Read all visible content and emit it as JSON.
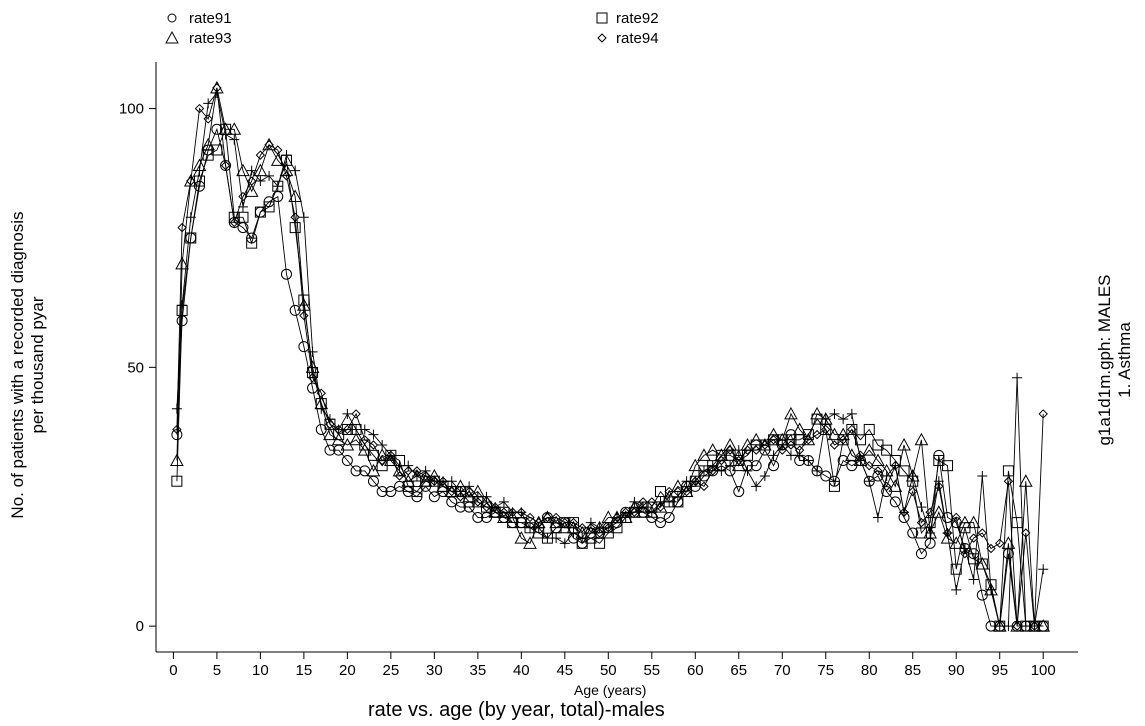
{
  "chart_data": {
    "type": "scatter",
    "title": "rate vs. age (by year, total)-males",
    "xlabel": "Age (years)",
    "ylabel_line1": "No. of patients with a recorded diagnosis",
    "ylabel_line2": "per thousand pyar",
    "right_line1": "g1a1d1m.gph: MALES",
    "right_line2": "1.  Asthma",
    "xlim": [
      -2,
      104
    ],
    "ylim": [
      -5,
      109
    ],
    "xticks": [
      0,
      5,
      10,
      15,
      20,
      25,
      30,
      35,
      40,
      45,
      50,
      55,
      60,
      65,
      70,
      75,
      80,
      85,
      90,
      95,
      100
    ],
    "yticks": [
      0,
      50,
      100
    ],
    "legend": {
      "rate91": "rate91",
      "rate92": "rate92",
      "rate93": "rate93",
      "rate94": "rate94"
    },
    "series": [
      {
        "name": "rate91",
        "marker": "circle",
        "values": [
          37,
          59,
          75,
          85,
          92,
          96,
          89,
          78,
          77,
          75,
          80,
          82,
          83,
          68,
          61,
          54,
          46,
          38,
          34,
          34,
          32,
          30,
          30,
          28,
          26,
          26,
          27,
          26,
          25,
          27,
          25,
          26,
          24,
          23,
          23,
          21,
          21,
          22,
          21,
          20,
          20,
          20,
          19,
          21,
          19,
          20,
          17,
          16,
          18,
          18,
          19,
          20,
          22,
          22,
          22,
          21,
          20,
          21,
          24,
          27,
          27,
          29,
          30,
          31,
          30,
          26,
          31,
          31,
          34,
          31,
          35,
          37,
          32,
          32,
          30,
          29,
          28,
          32,
          31,
          32,
          28,
          29,
          26,
          24,
          21,
          18,
          14,
          16,
          33,
          21,
          20,
          15,
          14,
          6,
          0,
          0,
          14,
          0,
          0,
          0,
          0
        ]
      },
      {
        "name": "rate92",
        "marker": "square",
        "values": [
          28,
          61,
          75,
          86,
          91,
          92,
          96,
          79,
          79,
          74,
          80,
          81,
          85,
          90,
          77,
          63,
          49,
          43,
          39,
          37,
          38,
          38,
          35,
          33,
          31,
          33,
          32,
          27,
          26,
          28,
          28,
          27,
          26,
          26,
          24,
          24,
          23,
          22,
          22,
          20,
          20,
          19,
          18,
          17,
          19,
          20,
          20,
          16,
          17,
          16,
          18,
          19,
          21,
          22,
          23,
          23,
          26,
          24,
          24,
          26,
          28,
          30,
          31,
          33,
          33,
          32,
          33,
          35,
          35,
          36,
          36,
          36,
          36,
          37,
          40,
          38,
          27,
          36,
          38,
          36,
          38,
          35,
          34,
          32,
          30,
          28,
          18,
          20,
          32,
          31,
          11,
          19,
          13,
          12,
          8,
          0,
          30,
          20,
          0,
          0,
          0
        ]
      },
      {
        "name": "rate93",
        "marker": "triangle",
        "values": [
          32,
          70,
          86,
          89,
          93,
          104,
          96,
          96,
          88,
          84,
          88,
          93,
          90,
          88,
          83,
          62,
          50,
          43,
          37,
          36,
          35,
          36,
          34,
          30,
          33,
          32,
          30,
          28,
          29,
          28,
          29,
          27,
          26,
          27,
          25,
          26,
          24,
          22,
          21,
          21,
          17,
          16,
          20,
          21,
          20,
          19,
          19,
          18,
          18,
          19,
          21,
          21,
          21,
          23,
          22,
          22,
          23,
          25,
          27,
          26,
          31,
          33,
          34,
          33,
          35,
          31,
          35,
          36,
          35,
          37,
          36,
          41,
          38,
          36,
          41,
          40,
          37,
          37,
          33,
          32,
          34,
          32,
          30,
          27,
          35,
          29,
          36,
          18,
          22,
          17,
          16,
          20,
          20,
          12,
          7,
          0,
          16,
          0,
          28,
          0,
          0
        ]
      },
      {
        "name": "rate94",
        "marker": "diamond",
        "values": [
          38,
          77,
          86,
          100,
          98,
          104,
          89,
          78,
          83,
          86,
          91,
          93,
          92,
          87,
          79,
          60,
          48,
          45,
          39,
          38,
          38,
          41,
          36,
          35,
          32,
          33,
          29,
          30,
          30,
          29,
          28,
          28,
          26,
          25,
          26,
          24,
          23,
          23,
          22,
          22,
          22,
          21,
          20,
          21,
          21,
          20,
          20,
          19,
          19,
          18,
          19,
          21,
          22,
          22,
          24,
          24,
          23,
          26,
          26,
          26,
          28,
          27,
          30,
          32,
          34,
          32,
          34,
          34,
          35,
          36,
          34,
          35,
          34,
          36,
          37,
          38,
          35,
          36,
          38,
          33,
          31,
          30,
          27,
          31,
          22,
          26,
          20,
          22,
          27,
          18,
          21,
          14,
          17,
          18,
          15,
          16,
          28,
          0,
          18,
          0,
          41
        ]
      },
      {
        "name": "",
        "marker": "plus",
        "values": [
          42,
          62,
          79,
          88,
          101,
          103,
          95,
          94,
          81,
          88,
          86,
          87,
          85,
          91,
          88,
          79,
          53,
          42,
          40,
          38,
          41,
          38,
          38,
          37,
          35,
          33,
          31,
          31,
          29,
          30,
          28,
          28,
          28,
          26,
          27,
          25,
          25,
          23,
          24,
          22,
          22,
          19,
          19,
          17,
          17,
          16,
          18,
          17,
          20,
          19,
          19,
          21,
          21,
          24,
          23,
          22,
          24,
          24,
          25,
          28,
          28,
          30,
          31,
          30,
          31,
          34,
          30,
          27,
          29,
          33,
          35,
          33,
          33,
          32,
          30,
          40,
          41,
          40,
          41,
          32,
          28,
          21,
          29,
          31,
          22,
          29,
          23,
          18,
          28,
          18,
          7,
          15,
          9,
          29,
          7,
          0,
          0,
          48,
          0,
          0,
          11
        ]
      }
    ]
  }
}
